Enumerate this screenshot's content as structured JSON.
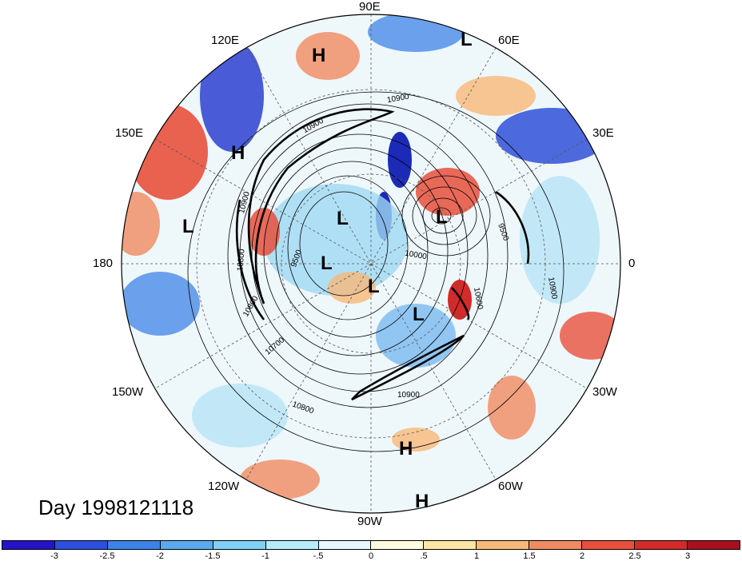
{
  "title": "Day 1998121118",
  "longitude_labels": [
    {
      "id": "90E",
      "text": "90E"
    },
    {
      "id": "60E",
      "text": "60E"
    },
    {
      "id": "30E",
      "text": "30E"
    },
    {
      "id": "0",
      "text": "0"
    },
    {
      "id": "30W",
      "text": "30W"
    },
    {
      "id": "60W",
      "text": "60W"
    },
    {
      "id": "90W",
      "text": "90W"
    },
    {
      "id": "120W",
      "text": "120W"
    },
    {
      "id": "150W",
      "text": "150W"
    },
    {
      "id": "180",
      "text": "180"
    },
    {
      "id": "150E",
      "text": "150E"
    },
    {
      "id": "120E",
      "text": "120E"
    }
  ],
  "pressure_centers": [
    {
      "type": "H",
      "label": "H"
    },
    {
      "type": "L",
      "label": "L"
    },
    {
      "type": "H",
      "label": "H"
    },
    {
      "type": "L",
      "label": "L"
    },
    {
      "type": "L",
      "label": "L"
    },
    {
      "type": "L",
      "label": "L"
    },
    {
      "type": "L",
      "label": "L"
    },
    {
      "type": "L",
      "label": "L"
    },
    {
      "type": "L",
      "label": "L"
    },
    {
      "type": "H",
      "label": "H"
    },
    {
      "type": "H",
      "label": "H"
    }
  ],
  "contour_labels": [
    "10900",
    "10900",
    "10800",
    "9500",
    "10800",
    "10700",
    "10800",
    "10900",
    "10600",
    "10900",
    "9500",
    "10000",
    "10900"
  ],
  "colorbar": {
    "colors": [
      "#2314c8",
      "#2d4fe0",
      "#3b82ea",
      "#5aaaf0",
      "#7fd0f6",
      "#b6ecfa",
      "#e6f8fc",
      "#fffbe2",
      "#fce6a4",
      "#f8b878",
      "#f08a60",
      "#e8503c",
      "#d42a2a",
      "#a81020"
    ],
    "ticks": [
      "-3",
      "-2.5",
      "-2",
      "-1.5",
      "-1",
      "-.5",
      "0",
      ".5",
      "1",
      "1.5",
      "2",
      "2.5",
      "3"
    ]
  }
}
